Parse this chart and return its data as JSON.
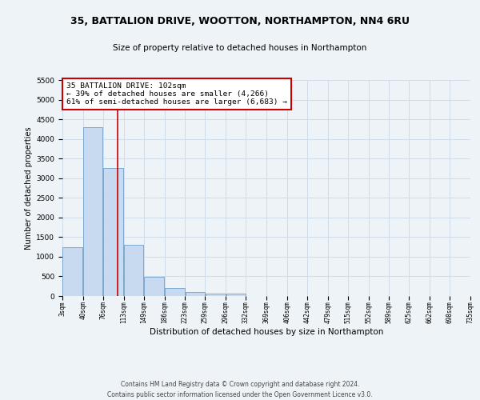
{
  "title": "35, BATTALION DRIVE, WOOTTON, NORTHAMPTON, NN4 6RU",
  "subtitle": "Size of property relative to detached houses in Northampton",
  "xlabel": "Distribution of detached houses by size in Northampton",
  "ylabel": "Number of detached properties",
  "footer_line1": "Contains HM Land Registry data © Crown copyright and database right 2024.",
  "footer_line2": "Contains public sector information licensed under the Open Government Licence v3.0.",
  "property_size": 102,
  "property_label": "35 BATTALION DRIVE: 102sqm",
  "annotation_line1": "← 39% of detached houses are smaller (4,266)",
  "annotation_line2": "61% of semi-detached houses are larger (6,683) →",
  "bin_edges": [
    3,
    40,
    76,
    113,
    149,
    186,
    223,
    259,
    296,
    332,
    369,
    406,
    442,
    479,
    515,
    552,
    589,
    625,
    662,
    698,
    735
  ],
  "bin_counts": [
    1250,
    4300,
    3250,
    1300,
    480,
    210,
    100,
    70,
    70,
    0,
    0,
    0,
    0,
    0,
    0,
    0,
    0,
    0,
    0,
    0
  ],
  "bar_color": "#c8daf0",
  "bar_edge_color": "#6ea0cc",
  "line_color": "#cc0000",
  "annotation_box_color": "#cc0000",
  "grid_color": "#d0dce8",
  "bg_color": "#eef3f8",
  "ylim": [
    0,
    5500
  ],
  "yticks": [
    0,
    500,
    1000,
    1500,
    2000,
    2500,
    3000,
    3500,
    4000,
    4500,
    5000,
    5500
  ]
}
